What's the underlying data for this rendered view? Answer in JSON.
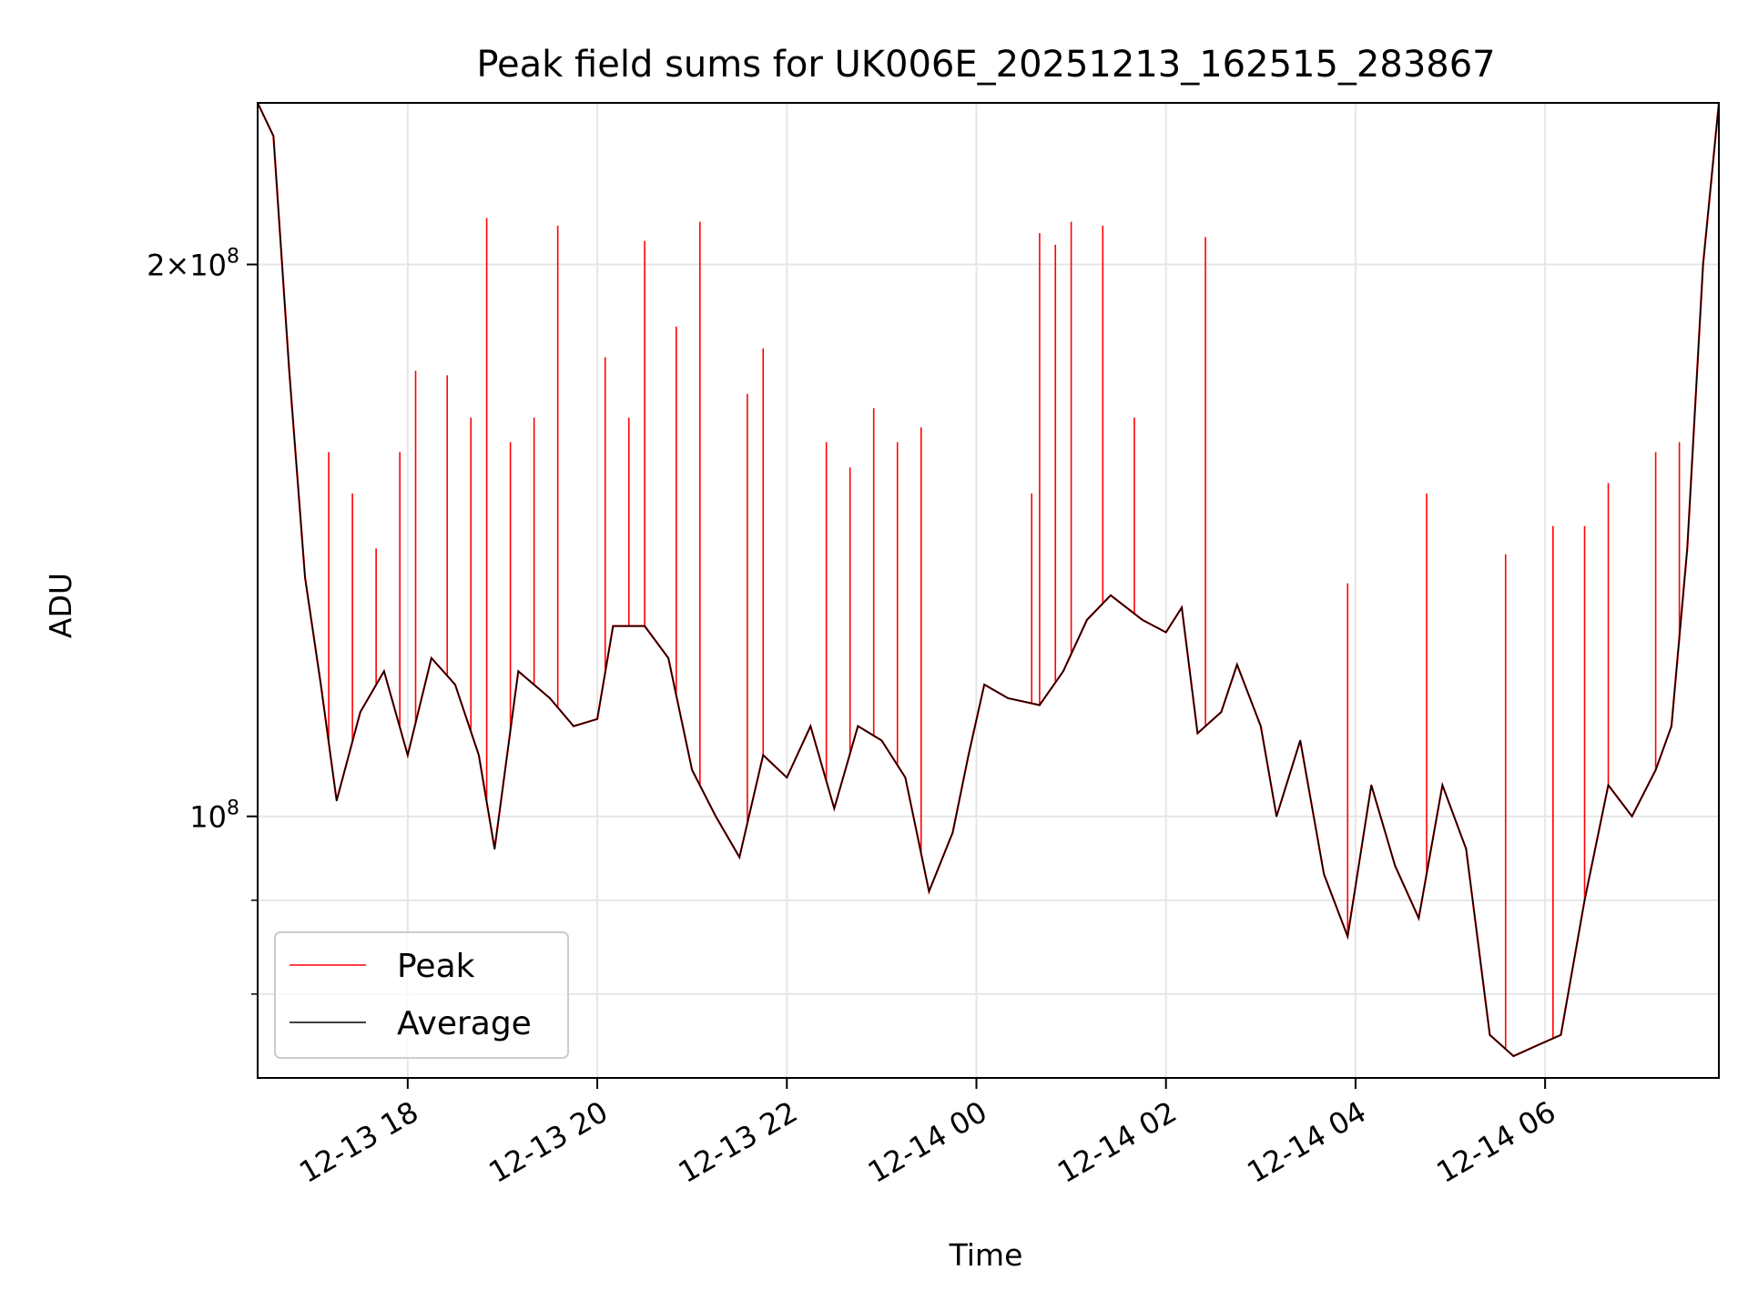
{
  "chart_data": {
    "type": "line",
    "title": "Peak field sums for UK006E_20251213_162515_283867",
    "xlabel": "Time",
    "ylabel": "ADU",
    "yscale": "log",
    "ylim": [
      72000000,
      245000000
    ],
    "xlim": [
      "2025-12-13T16:25",
      "2025-12-14T07:50"
    ],
    "grid": true,
    "legend_position": "lower-left",
    "x_ticks": [
      {
        "t": "2025-12-13T18:00",
        "label": "12-13 18"
      },
      {
        "t": "2025-12-13T20:00",
        "label": "12-13 20"
      },
      {
        "t": "2025-12-13T22:00",
        "label": "12-13 22"
      },
      {
        "t": "2025-12-14T00:00",
        "label": "12-14 00"
      },
      {
        "t": "2025-12-14T02:00",
        "label": "12-14 02"
      },
      {
        "t": "2025-12-14T04:00",
        "label": "12-14 04"
      },
      {
        "t": "2025-12-14T06:00",
        "label": "12-14 06"
      }
    ],
    "y_ticks": [
      {
        "value": 100000000,
        "mantissa": "",
        "exponent": "8"
      },
      {
        "value": 200000000,
        "mantissa": "2×",
        "exponent": "8"
      }
    ],
    "y_minor_ticks": [
      80000000,
      90000000
    ],
    "series": [
      {
        "name": "Average",
        "color": "#000000",
        "points": [
          [
            "2025-12-13T16:25",
            245000000
          ],
          [
            "2025-12-13T16:35",
            235000000
          ],
          [
            "2025-12-13T16:45",
            175000000
          ],
          [
            "2025-12-13T16:55",
            135000000
          ],
          [
            "2025-12-13T17:05",
            118000000
          ],
          [
            "2025-12-13T17:15",
            102000000
          ],
          [
            "2025-12-13T17:30",
            114000000
          ],
          [
            "2025-12-13T17:45",
            120000000
          ],
          [
            "2025-12-13T18:00",
            108000000
          ],
          [
            "2025-12-13T18:15",
            122000000
          ],
          [
            "2025-12-13T18:30",
            118000000
          ],
          [
            "2025-12-13T18:45",
            108000000
          ],
          [
            "2025-12-13T18:55",
            96000000
          ],
          [
            "2025-12-13T19:10",
            120000000
          ],
          [
            "2025-12-13T19:30",
            116000000
          ],
          [
            "2025-12-13T19:45",
            112000000
          ],
          [
            "2025-12-13T20:00",
            113000000
          ],
          [
            "2025-12-13T20:10",
            127000000
          ],
          [
            "2025-12-13T20:30",
            127000000
          ],
          [
            "2025-12-13T20:45",
            122000000
          ],
          [
            "2025-12-13T21:00",
            106000000
          ],
          [
            "2025-12-13T21:15",
            100000000
          ],
          [
            "2025-12-13T21:30",
            95000000
          ],
          [
            "2025-12-13T21:45",
            108000000
          ],
          [
            "2025-12-13T22:00",
            105000000
          ],
          [
            "2025-12-13T22:15",
            112000000
          ],
          [
            "2025-12-13T22:30",
            101000000
          ],
          [
            "2025-12-13T22:45",
            112000000
          ],
          [
            "2025-12-13T23:00",
            110000000
          ],
          [
            "2025-12-13T23:15",
            105000000
          ],
          [
            "2025-12-13T23:30",
            91000000
          ],
          [
            "2025-12-13T23:45",
            98000000
          ],
          [
            "2025-12-13T23:55",
            108000000
          ],
          [
            "2025-12-14T00:05",
            118000000
          ],
          [
            "2025-12-14T00:20",
            116000000
          ],
          [
            "2025-12-14T00:40",
            115000000
          ],
          [
            "2025-12-14T00:55",
            120000000
          ],
          [
            "2025-12-14T01:10",
            128000000
          ],
          [
            "2025-12-14T01:25",
            132000000
          ],
          [
            "2025-12-14T01:45",
            128000000
          ],
          [
            "2025-12-14T02:00",
            126000000
          ],
          [
            "2025-12-14T02:10",
            130000000
          ],
          [
            "2025-12-14T02:20",
            111000000
          ],
          [
            "2025-12-14T02:35",
            114000000
          ],
          [
            "2025-12-14T02:45",
            121000000
          ],
          [
            "2025-12-14T03:00",
            112000000
          ],
          [
            "2025-12-14T03:10",
            100000000
          ],
          [
            "2025-12-14T03:25",
            110000000
          ],
          [
            "2025-12-14T03:40",
            93000000
          ],
          [
            "2025-12-14T03:55",
            86000000
          ],
          [
            "2025-12-14T04:10",
            104000000
          ],
          [
            "2025-12-14T04:25",
            94000000
          ],
          [
            "2025-12-14T04:40",
            88000000
          ],
          [
            "2025-12-14T04:55",
            104000000
          ],
          [
            "2025-12-14T05:10",
            96000000
          ],
          [
            "2025-12-14T05:25",
            76000000
          ],
          [
            "2025-12-14T05:40",
            74000000
          ],
          [
            "2025-12-14T05:55",
            75000000
          ],
          [
            "2025-12-14T06:10",
            76000000
          ],
          [
            "2025-12-14T06:25",
            90000000
          ],
          [
            "2025-12-14T06:40",
            104000000
          ],
          [
            "2025-12-14T06:55",
            100000000
          ],
          [
            "2025-12-14T07:10",
            106000000
          ],
          [
            "2025-12-14T07:20",
            112000000
          ],
          [
            "2025-12-14T07:30",
            140000000
          ],
          [
            "2025-12-14T07:40",
            200000000
          ],
          [
            "2025-12-14T07:50",
            245000000
          ]
        ]
      },
      {
        "name": "Peak",
        "color": "#ff0000",
        "spikes": [
          [
            "2025-12-13T17:10",
            158000000
          ],
          [
            "2025-12-13T17:25",
            150000000
          ],
          [
            "2025-12-13T17:40",
            140000000
          ],
          [
            "2025-12-13T17:55",
            158000000
          ],
          [
            "2025-12-13T18:05",
            175000000
          ],
          [
            "2025-12-13T18:25",
            174000000
          ],
          [
            "2025-12-13T18:40",
            165000000
          ],
          [
            "2025-12-13T18:50",
            212000000
          ],
          [
            "2025-12-13T19:05",
            160000000
          ],
          [
            "2025-12-13T19:20",
            165000000
          ],
          [
            "2025-12-13T19:35",
            210000000
          ],
          [
            "2025-12-13T20:05",
            178000000
          ],
          [
            "2025-12-13T20:20",
            165000000
          ],
          [
            "2025-12-13T20:30",
            206000000
          ],
          [
            "2025-12-13T20:50",
            185000000
          ],
          [
            "2025-12-13T21:05",
            211000000
          ],
          [
            "2025-12-13T21:35",
            170000000
          ],
          [
            "2025-12-13T21:45",
            180000000
          ],
          [
            "2025-12-13T22:25",
            160000000
          ],
          [
            "2025-12-13T22:40",
            155000000
          ],
          [
            "2025-12-13T22:55",
            167000000
          ],
          [
            "2025-12-13T23:10",
            160000000
          ],
          [
            "2025-12-13T23:25",
            163000000
          ],
          [
            "2025-12-14T00:35",
            150000000
          ],
          [
            "2025-12-14T00:40",
            208000000
          ],
          [
            "2025-12-14T00:50",
            205000000
          ],
          [
            "2025-12-14T01:00",
            211000000
          ],
          [
            "2025-12-14T01:20",
            210000000
          ],
          [
            "2025-12-14T01:40",
            165000000
          ],
          [
            "2025-12-14T02:25",
            207000000
          ],
          [
            "2025-12-14T03:55",
            134000000
          ],
          [
            "2025-12-14T04:45",
            150000000
          ],
          [
            "2025-12-14T05:35",
            139000000
          ],
          [
            "2025-12-14T06:05",
            144000000
          ],
          [
            "2025-12-14T06:25",
            144000000
          ],
          [
            "2025-12-14T06:40",
            152000000
          ],
          [
            "2025-12-14T07:10",
            158000000
          ],
          [
            "2025-12-14T07:25",
            160000000
          ]
        ]
      }
    ]
  }
}
